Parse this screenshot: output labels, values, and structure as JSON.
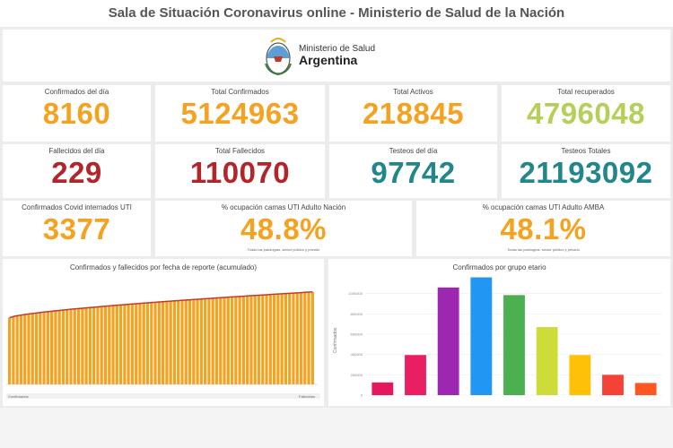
{
  "header": {
    "title": "Sala de Situación Coronavirus online - Ministerio de Salud de la Nación"
  },
  "logo": {
    "line1": "Ministerio de Salud",
    "line2": "Argentina"
  },
  "colors": {
    "orange": "#f4a21f",
    "green": "#b4d05a",
    "red": "#b1252b",
    "teal": "#23868b"
  },
  "stats": {
    "confirmados_dia": {
      "label": "Confirmados del día",
      "value": "8160"
    },
    "total_confirmados": {
      "label": "Total Confirmados",
      "value": "5124963"
    },
    "total_activos": {
      "label": "Total Activos",
      "value": "218845"
    },
    "total_recuperados": {
      "label": "Total recuperados",
      "value": "4796048"
    },
    "fallecidos_dia": {
      "label": "Fallecidos del día",
      "value": "229"
    },
    "total_fallecidos": {
      "label": "Total Fallecidos",
      "value": "110070"
    },
    "testeos_dia": {
      "label": "Testeos del día",
      "value": "97742"
    },
    "testeos_totales": {
      "label": "Testeos Totales",
      "value": "21193092"
    },
    "internados_uti": {
      "label": "Confirmados Covid internados UTI",
      "value": "3377"
    },
    "ocupacion_nacion": {
      "label": "% ocupación camas UTI Adulto Nación",
      "value": "48.8%",
      "note": "Todas las patologías, sector público y privado"
    },
    "ocupacion_amba": {
      "label": "% ocupación camas UTI Adulto AMBA",
      "value": "48.1%",
      "note": "Todas las patologías, sector público y privado"
    }
  },
  "chart_data": [
    {
      "type": "bar",
      "title": "Confirmados y fallecidos por fecha de reporte (acumulado)",
      "series": [
        {
          "name": "Confirmados",
          "color": "#f4a21f"
        }
      ],
      "overlay_line": {
        "color": "#c0392b"
      },
      "n_bars": 80,
      "start_value": 0.62,
      "end_value": 0.86,
      "legend": [
        "Confirmados",
        "Fallecidos"
      ]
    },
    {
      "type": "bar",
      "title": "Confirmados por grupo etario",
      "ylabel": "Confirmados",
      "yticks": [
        "0",
        "200000",
        "400000",
        "600000",
        "800000",
        "1000000"
      ],
      "ylim": [
        0,
        1200000
      ],
      "values": [
        125000,
        395000,
        1060000,
        1160000,
        985000,
        670000,
        395000,
        200000,
        120000
      ],
      "colors": [
        "#e5175f",
        "#e91e63",
        "#9c27b0",
        "#2196f3",
        "#4caf50",
        "#cddc39",
        "#ffc107",
        "#f44336",
        "#ff5722"
      ]
    }
  ]
}
